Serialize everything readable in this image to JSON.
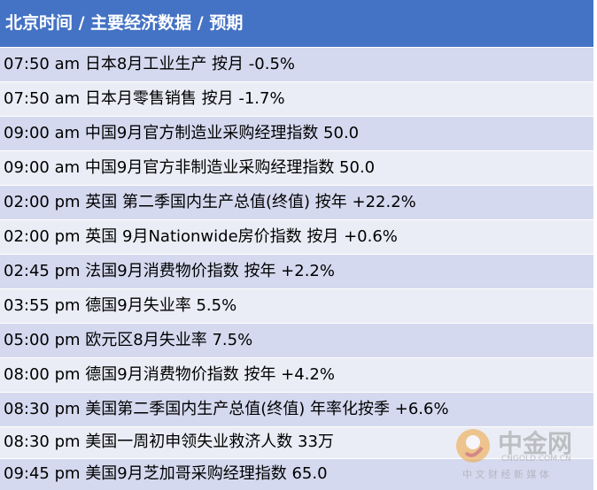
{
  "header": {
    "title": "北京时间 / 主要经济数据 /  预期"
  },
  "table": {
    "rows": [
      "07:50 am 日本8月工业生产 按月 -0.5%",
      "07:50 am 日本月零售销售 按月 -1.7%",
      "09:00 am 中国9月官方制造业采购经理指数 50.0",
      "09:00 am 中国9月官方非制造业采购经理指数 50.0",
      "02:00 pm 英国 第二季国内生产总值(终值) 按年 +22.2%",
      "02:00 pm 英国 9月Nationwide房价指数 按月 +0.6%",
      "02:45 pm 法国9月消费物价指数 按年 +2.2%",
      "03:55 pm 德国9月失业率 5.5%",
      "05:00 pm 欧元区8月失业率 7.5%",
      "08:00 pm 德国9月消费物价指数 按年 +4.2%",
      "08:30 pm 美国第二季国内生产总值(终值) 年率化按季 +6.6%",
      "08:30 pm 美国一周初申领失业救济人数 33万",
      "09:45 pm 美国9月芝加哥采购经理指数 65.0"
    ]
  },
  "watermark": {
    "brand": "中金网",
    "domain": "CNGOLD.COM.CN",
    "slogan": "中 文 财 经 新 媒 体"
  }
}
